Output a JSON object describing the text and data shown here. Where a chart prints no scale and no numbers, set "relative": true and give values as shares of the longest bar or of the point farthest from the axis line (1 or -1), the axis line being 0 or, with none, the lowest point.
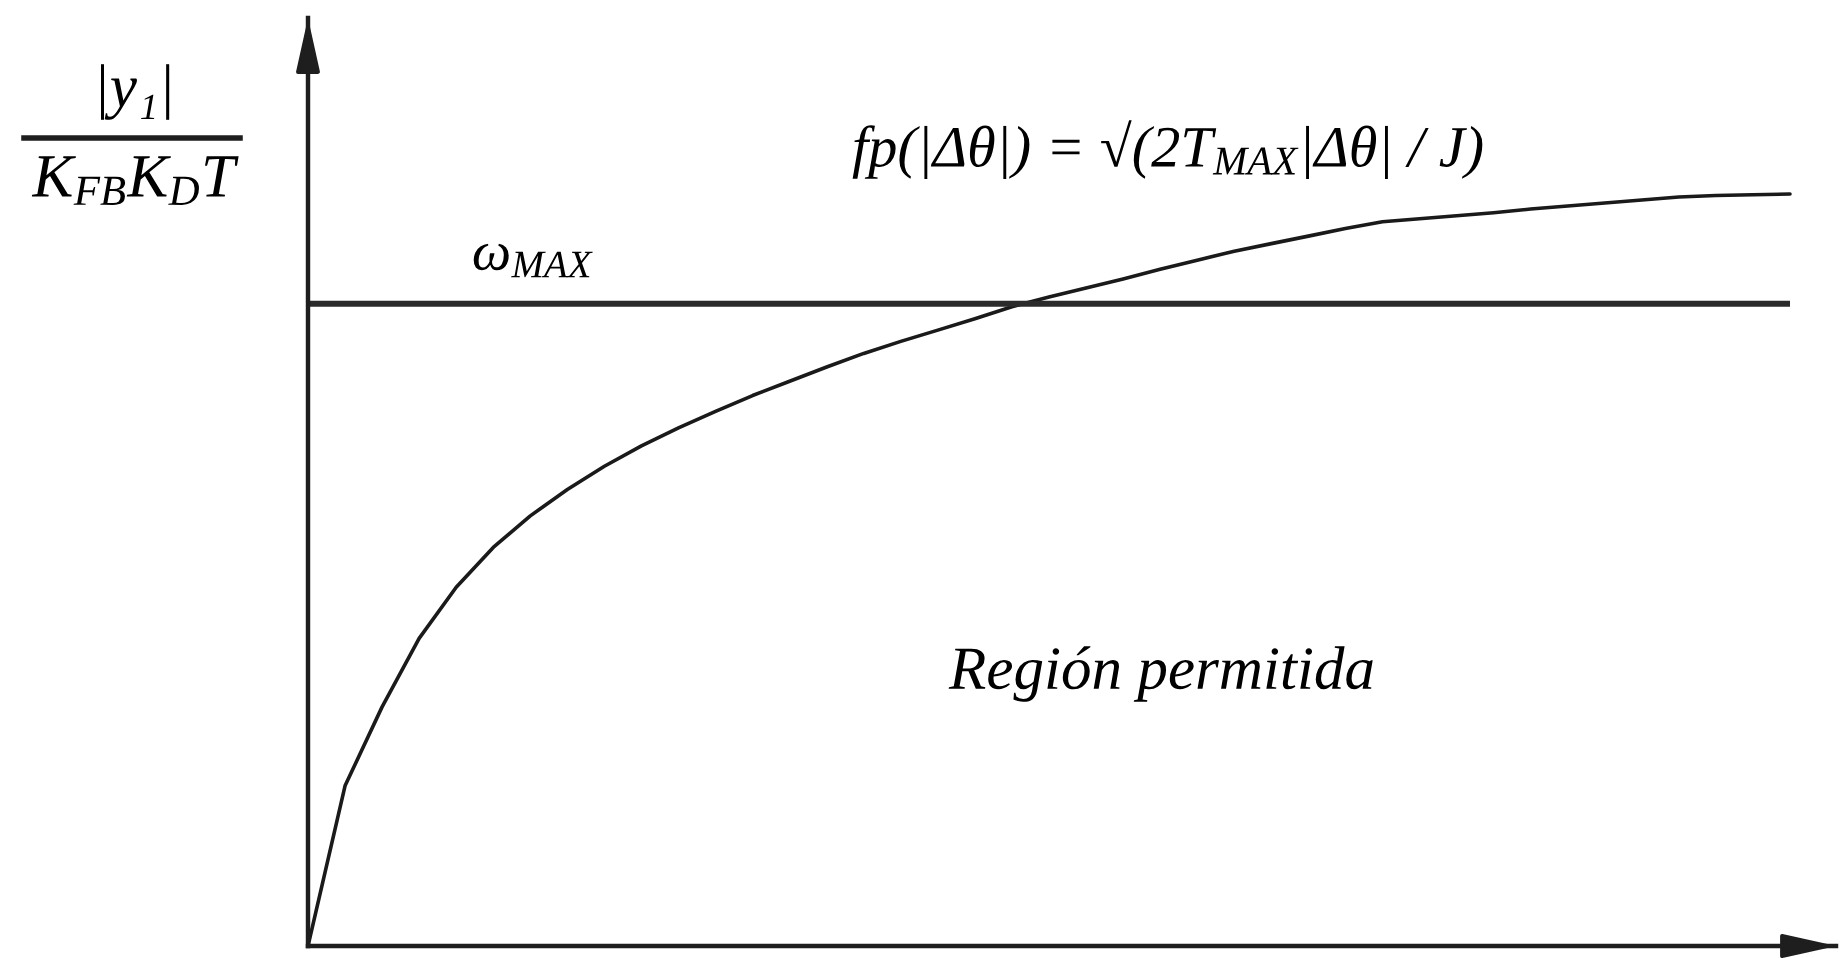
{
  "chart_data": {
    "type": "line",
    "relative": true,
    "ylabel": "|y₁|\nK$_{FB}$K$_{D}$T",
    "categories": [
      null,
      null,
      null,
      null,
      null,
      null,
      null,
      null,
      null,
      null,
      null,
      null,
      null,
      null,
      null,
      null,
      null,
      null,
      null,
      null,
      null,
      null,
      null,
      null,
      null,
      null,
      null,
      null,
      null,
      null,
      null,
      null,
      null,
      null,
      null,
      null,
      null,
      null,
      null,
      null,
      null
    ],
    "series": [
      {
        "name": "fp(|Δθ|) = √(2T$_{MAX}$|Δθ| / J)",
        "color": "#1a1a1a",
        "values": [
          0,
          0.213,
          0.318,
          0.409,
          0.477,
          0.53,
          0.572,
          0.607,
          0.638,
          0.665,
          0.689,
          0.711,
          0.732,
          0.751,
          0.77,
          0.788,
          0.804,
          0.819,
          0.834,
          0.85,
          0.863,
          0.875,
          0.887,
          0.9,
          0.912,
          0.924,
          0.934,
          0.944,
          0.954,
          0.963,
          0.967,
          0.971,
          0.975,
          0.98,
          0.984,
          0.988,
          0.992,
          0.996,
          0.998,
          0.999,
          1
        ]
      }
    ],
    "ref_lines": [
      {
        "axis": "y",
        "value": 0.854,
        "label": "ω$_{MAX}$",
        "color": "#2b2b2b"
      }
    ],
    "annotations": [
      "Región permitida"
    ]
  }
}
